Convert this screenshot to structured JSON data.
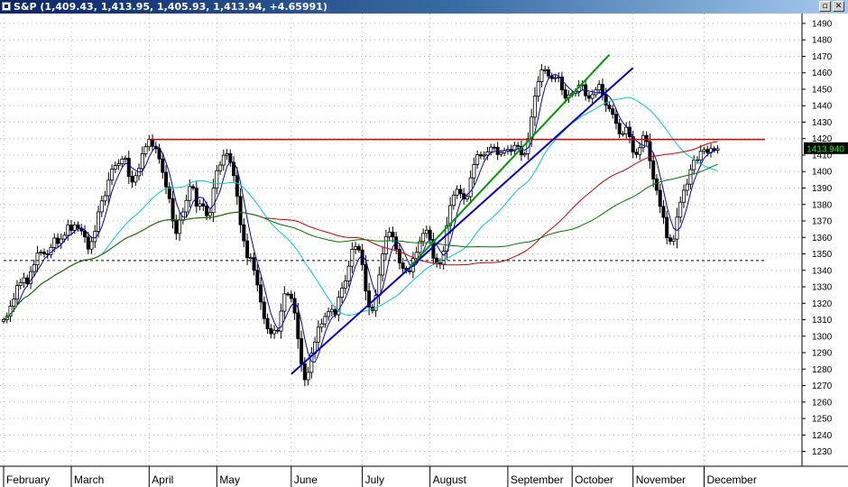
{
  "window": {
    "title": "S&P (1,409.43, 1,413.95, 1,405.93, 1,413.94, +4.65991)",
    "restore_glyph": "▫",
    "close_glyph": "✕"
  },
  "chart_data": {
    "type": "candlestick",
    "symbol": "S&P",
    "last_price_label": "1413.940",
    "ylim": [
      1221,
      1496
    ],
    "y_ticks": [
      1230,
      1240,
      1250,
      1260,
      1270,
      1280,
      1290,
      1300,
      1310,
      1320,
      1330,
      1340,
      1350,
      1360,
      1370,
      1380,
      1390,
      1400,
      1410,
      1420,
      1430,
      1440,
      1450,
      1460,
      1470,
      1480,
      1490
    ],
    "x_range": [
      0,
      225
    ],
    "months": [
      {
        "label": "February",
        "x": 0
      },
      {
        "label": "March",
        "x": 20
      },
      {
        "label": "April",
        "x": 43
      },
      {
        "label": "May",
        "x": 63
      },
      {
        "label": "June",
        "x": 85
      },
      {
        "label": "July",
        "x": 106
      },
      {
        "label": "August",
        "x": 126
      },
      {
        "label": "September",
        "x": 149
      },
      {
        "label": "October",
        "x": 168
      },
      {
        "label": "November",
        "x": 186
      },
      {
        "label": "December",
        "x": 207
      }
    ],
    "closes": [
      1310.02,
      1312.16,
      1318.23,
      1322.48,
      1330.78,
      1332.56,
      1335.44,
      1331.92,
      1339.22,
      1343.35,
      1350.52,
      1351.04,
      1349.98,
      1349.57,
      1353.92,
      1359.61,
      1356.36,
      1359.01,
      1361.33,
      1367.49,
      1364.26,
      1367.58,
      1365.65,
      1363.94,
      1360.28,
      1352.91,
      1357.45,
      1363.69,
      1375.49,
      1382.18,
      1385.34,
      1394.76,
      1401.43,
      1403.64,
      1404.79,
      1407.55,
      1408.05,
      1397.12,
      1393.63,
      1397.48,
      1401.93,
      1410.83,
      1415.1,
      1419.5,
      1415.4,
      1413.97,
      1407.67,
      1399.53,
      1390.67,
      1383.59,
      1370.01,
      1362.4,
      1370.43,
      1375.46,
      1382.47,
      1390.93,
      1389.89,
      1378.95,
      1380.45,
      1379.06,
      1373.22,
      1375.09,
      1389.92,
      1400.51,
      1403.95,
      1409.91,
      1410.85,
      1405.59,
      1397.54,
      1384.9,
      1367.7,
      1357.94,
      1347.65,
      1347.73,
      1340.04,
      1331.14,
      1320.75,
      1310.75,
      1304.55,
      1301.53,
      1303.61,
      1303.1,
      1315.21,
      1325.72,
      1325.46,
      1322.88,
      1314.1,
      1298.52,
      1283.17,
      1273.58,
      1278.03,
      1289.59,
      1296.42,
      1305.46,
      1307.49,
      1311.96,
      1314.85,
      1316.27,
      1313.0,
      1323.6,
      1329.22,
      1333.59,
      1342.53,
      1352.76,
      1354.48,
      1352.39,
      1343.5,
      1327.49,
      1317.63,
      1315.64,
      1324.68,
      1337.18,
      1349.97,
      1360.53,
      1363.26,
      1360.31,
      1352.85,
      1344.46,
      1341.18,
      1339.7,
      1339.2,
      1347.28,
      1350.9,
      1357.55,
      1362.41,
      1364.38,
      1358.74,
      1347.41,
      1344.52,
      1343.74,
      1351.63,
      1367.17,
      1379.39,
      1385.72,
      1389.21,
      1386.59,
      1383.33,
      1384.8,
      1396.19,
      1404.28,
      1410.28,
      1409.44,
      1410.06,
      1411.93,
      1414.81,
      1414.68,
      1410.39,
      1411.44,
      1412.65,
      1413.45,
      1412.57,
      1415.94,
      1415.3,
      1410.09,
      1410.84,
      1419.99,
      1433.08,
      1445.79,
      1454.6,
      1461.7,
      1461.85,
      1458.06,
      1456.49,
      1457.0,
      1457.48,
      1449.63,
      1444.58,
      1446.5,
      1447.58,
      1448.63,
      1452.54,
      1452.7,
      1446.06,
      1444.48,
      1446.74,
      1449.59,
      1452.92,
      1446.74,
      1440.33,
      1438.09,
      1434.78,
      1429.3,
      1422.95,
      1423.0,
      1426.91,
      1421.2,
      1411.73,
      1410.39,
      1414.56,
      1421.9,
      1418.26,
      1406.55,
      1395.51,
      1388.63,
      1378.87,
      1372.13,
      1359.78,
      1357.69,
      1358.98,
      1372.33,
      1381.39,
      1388.65,
      1392.38,
      1401.17,
      1406.92,
      1407.1,
      1412.29,
      1413.39,
      1411.53,
      1413.95,
      1412.88,
      1413.94
    ],
    "series": [
      {
        "name": "",
        "color": "#0000cc",
        "smooth": 5
      },
      {
        "name": "",
        "color": "#00cccc",
        "smooth": 30
      },
      {
        "name": "",
        "color": "#cc0000",
        "smooth": 78
      },
      {
        "name": "",
        "color": "#007700",
        "smooth": 100
      }
    ],
    "lines": [
      {
        "color": "#cc0000",
        "x1": 43,
        "y1": 1419.5,
        "x2": 225,
        "y2": 1419.5,
        "width": 1.5
      },
      {
        "color": "#000000",
        "x1": 0,
        "y1": 1346,
        "x2": 225,
        "y2": 1346,
        "width": 1,
        "dash": true
      },
      {
        "color": "#0000cc",
        "x1": 85,
        "y1": 1277,
        "x2": 186,
        "y2": 1463,
        "width": 2
      },
      {
        "color": "#009900",
        "x1": 120,
        "y1": 1342,
        "x2": 179,
        "y2": 1471,
        "width": 2
      }
    ]
  }
}
